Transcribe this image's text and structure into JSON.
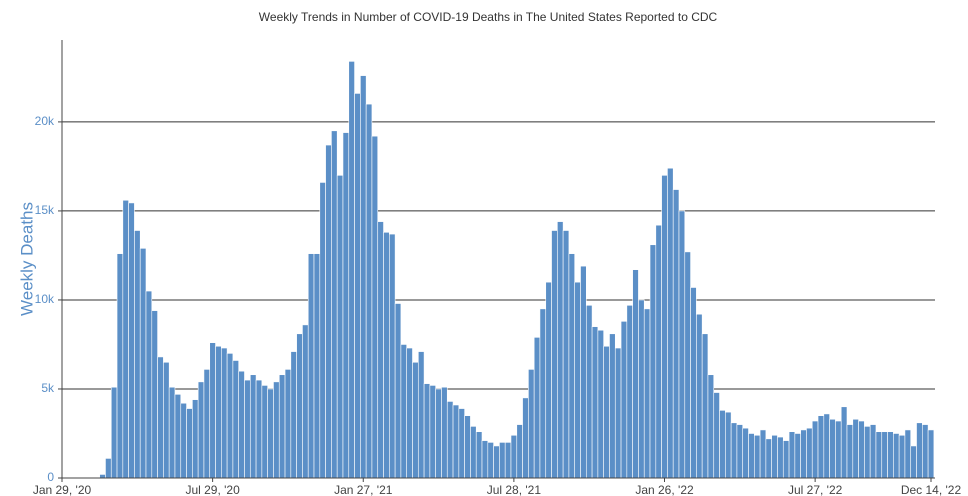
{
  "chart_data": {
    "type": "bar",
    "title": "Weekly Trends in Number of COVID-19 Deaths in The United States Reported to CDC",
    "y_label": "Weekly Deaths",
    "color": "#5b8fc7",
    "grid": true,
    "x": [
      "2020-01-29",
      "2020-02-05",
      "2020-02-12",
      "2020-02-19",
      "2020-02-26",
      "2020-03-04",
      "2020-03-11",
      "2020-03-18",
      "2020-03-25",
      "2020-04-01",
      "2020-04-08",
      "2020-04-15",
      "2020-04-22",
      "2020-04-29",
      "2020-05-06",
      "2020-05-13",
      "2020-05-20",
      "2020-05-27",
      "2020-06-03",
      "2020-06-10",
      "2020-06-17",
      "2020-06-24",
      "2020-07-01",
      "2020-07-08",
      "2020-07-15",
      "2020-07-22",
      "2020-07-29",
      "2020-08-05",
      "2020-08-12",
      "2020-08-19",
      "2020-08-26",
      "2020-09-02",
      "2020-09-09",
      "2020-09-16",
      "2020-09-23",
      "2020-09-30",
      "2020-10-07",
      "2020-10-14",
      "2020-10-21",
      "2020-10-28",
      "2020-11-04",
      "2020-11-11",
      "2020-11-18",
      "2020-11-25",
      "2020-12-02",
      "2020-12-09",
      "2020-12-16",
      "2020-12-23",
      "2020-12-30",
      "2021-01-06",
      "2021-01-13",
      "2021-01-20",
      "2021-01-27",
      "2021-02-03",
      "2021-02-10",
      "2021-02-17",
      "2021-02-24",
      "2021-03-03",
      "2021-03-10",
      "2021-03-17",
      "2021-03-24",
      "2021-03-31",
      "2021-04-07",
      "2021-04-14",
      "2021-04-21",
      "2021-04-28",
      "2021-05-05",
      "2021-05-12",
      "2021-05-19",
      "2021-05-26",
      "2021-06-02",
      "2021-06-09",
      "2021-06-16",
      "2021-06-23",
      "2021-06-30",
      "2021-07-07",
      "2021-07-14",
      "2021-07-21",
      "2021-07-28",
      "2021-08-04",
      "2021-08-11",
      "2021-08-18",
      "2021-08-25",
      "2021-09-01",
      "2021-09-08",
      "2021-09-15",
      "2021-09-22",
      "2021-09-29",
      "2021-10-06",
      "2021-10-13",
      "2021-10-20",
      "2021-10-27",
      "2021-11-03",
      "2021-11-10",
      "2021-11-17",
      "2021-11-24",
      "2021-12-01",
      "2021-12-08",
      "2021-12-15",
      "2021-12-22",
      "2021-12-29",
      "2022-01-05",
      "2022-01-12",
      "2022-01-19",
      "2022-01-26",
      "2022-02-02",
      "2022-02-09",
      "2022-02-16",
      "2022-02-23",
      "2022-03-02",
      "2022-03-09",
      "2022-03-16",
      "2022-03-23",
      "2022-03-30",
      "2022-04-06",
      "2022-04-13",
      "2022-04-20",
      "2022-04-27",
      "2022-05-04",
      "2022-05-11",
      "2022-05-18",
      "2022-05-25",
      "2022-06-01",
      "2022-06-08",
      "2022-06-15",
      "2022-06-22",
      "2022-06-29",
      "2022-07-06",
      "2022-07-13",
      "2022-07-20",
      "2022-07-27",
      "2022-08-03",
      "2022-08-10",
      "2022-08-17",
      "2022-08-24",
      "2022-08-31",
      "2022-09-07",
      "2022-09-14",
      "2022-09-21",
      "2022-09-28",
      "2022-10-05",
      "2022-10-12",
      "2022-10-19",
      "2022-10-26",
      "2022-11-02",
      "2022-11-09",
      "2022-11-16",
      "2022-11-23",
      "2022-11-30",
      "2022-12-07",
      "2022-12-14"
    ],
    "values": [
      0,
      0,
      0,
      0,
      0,
      0,
      0,
      200,
      1100,
      5100,
      12600,
      15600,
      15450,
      13900,
      12900,
      10500,
      9400,
      6800,
      6500,
      5100,
      4700,
      4200,
      3900,
      4400,
      5400,
      6100,
      7600,
      7400,
      7300,
      7000,
      6600,
      6000,
      5500,
      5800,
      5500,
      5200,
      5000,
      5400,
      5800,
      6100,
      7100,
      8100,
      8600,
      12600,
      12600,
      16600,
      18700,
      19500,
      17000,
      19400,
      23400,
      21600,
      22600,
      21000,
      19200,
      14400,
      13800,
      13700,
      9800,
      7500,
      7300,
      6500,
      7100,
      5300,
      5200,
      5000,
      5100,
      4300,
      4100,
      3900,
      3500,
      2900,
      2600,
      2100,
      2000,
      1800,
      2000,
      2000,
      2400,
      3000,
      4500,
      6100,
      7900,
      9500,
      11000,
      13900,
      14400,
      13900,
      12600,
      11000,
      11900,
      9700,
      8500,
      8300,
      7400,
      8100,
      7300,
      8800,
      9700,
      11700,
      10000,
      9500,
      13100,
      14200,
      17000,
      17400,
      16200,
      15000,
      12700,
      10700,
      9200,
      8100,
      5800,
      4800,
      3800,
      3700,
      3100,
      3000,
      2800,
      2500,
      2400,
      2700,
      2200,
      2400,
      2300,
      2100,
      2600,
      2500,
      2700,
      2800,
      3200,
      3500,
      3600,
      3300,
      3200,
      4000,
      3000,
      3300,
      3200,
      2900,
      3000,
      2600,
      2600,
      2600,
      2500,
      2400,
      2700,
      1800,
      3100,
      3000,
      2700
    ],
    "xlim": [
      "2020-01-29",
      "2022-12-14"
    ],
    "xticks": [
      {
        "value": "2020-01-29",
        "label": "Jan 29, '20"
      },
      {
        "value": "2020-07-29",
        "label": "Jul 29, '20"
      },
      {
        "value": "2021-01-27",
        "label": "Jan 27, '21"
      },
      {
        "value": "2021-07-28",
        "label": "Jul 28, '21"
      },
      {
        "value": "2022-01-26",
        "label": "Jan 26, '22"
      },
      {
        "value": "2022-07-27",
        "label": "Jul 27, '22"
      },
      {
        "value": "2022-12-14",
        "label": "Dec 14, '22"
      }
    ],
    "ylim": [
      0,
      24600
    ],
    "yticks": [
      0,
      {
        "value": 5000,
        "label": "5k"
      },
      {
        "value": 10000,
        "label": "10k"
      },
      {
        "value": 15000,
        "label": "15k"
      },
      {
        "value": 20000,
        "label": "20k"
      }
    ]
  }
}
